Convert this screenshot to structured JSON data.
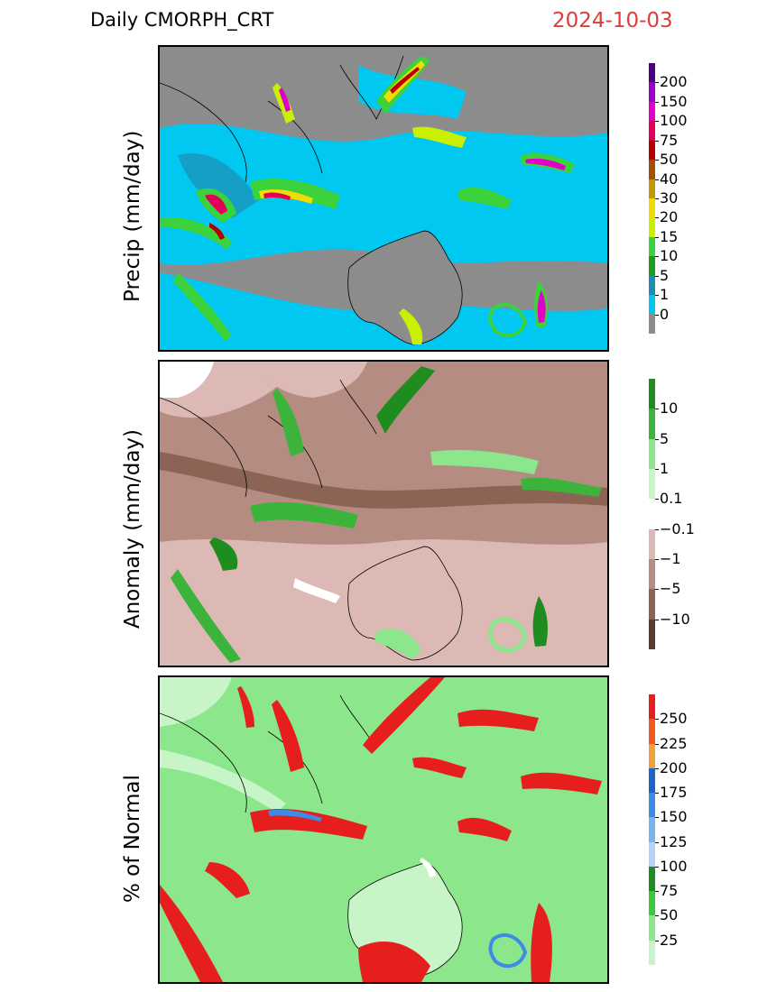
{
  "header": {
    "title": "Daily  CMORPH_CRT",
    "date": "2024-10-03",
    "date_color": "#e23b3b"
  },
  "panels": [
    {
      "ylabel": "Precip  (mm/day)",
      "legend": {
        "labels": [
          "200",
          "150",
          "100",
          "75",
          "50",
          "40",
          "30",
          "20",
          "15",
          "10",
          "5",
          "1",
          "0"
        ],
        "colors": [
          "#4b0082",
          "#9a00c8",
          "#e000c8",
          "#e0005a",
          "#b40000",
          "#a05000",
          "#c89600",
          "#f0dc00",
          "#c8f000",
          "#3cd23c",
          "#1e9b1e",
          "#1e8cb4",
          "#00c8f0",
          "#8c8c8c"
        ]
      }
    },
    {
      "ylabel": "Anomaly  (mm/day)",
      "legend": {
        "labels": [
          "10",
          "5",
          "1",
          "0.1",
          "−0.1",
          "−1",
          "−5",
          "−10"
        ],
        "colors": [
          "#1e8c1e",
          "#3cb43c",
          "#8ce68c",
          "#c8f5c8",
          "#ffffff",
          "#dcb9b4",
          "#b48c82",
          "#8c6455",
          "#5a3c32"
        ]
      }
    },
    {
      "ylabel": "%  of  Normal",
      "legend": {
        "labels": [
          "250",
          "225",
          "200",
          "175",
          "150",
          "125",
          "100",
          "75",
          "50",
          "25"
        ],
        "colors": [
          "#e61e1e",
          "#f05a1e",
          "#f0a03c",
          "#1e64c8",
          "#3c8ce6",
          "#78b4f0",
          "#b4d2fa",
          "#1e8c1e",
          "#3cc83c",
          "#8ce68c",
          "#c8f5c8"
        ]
      }
    }
  ]
}
